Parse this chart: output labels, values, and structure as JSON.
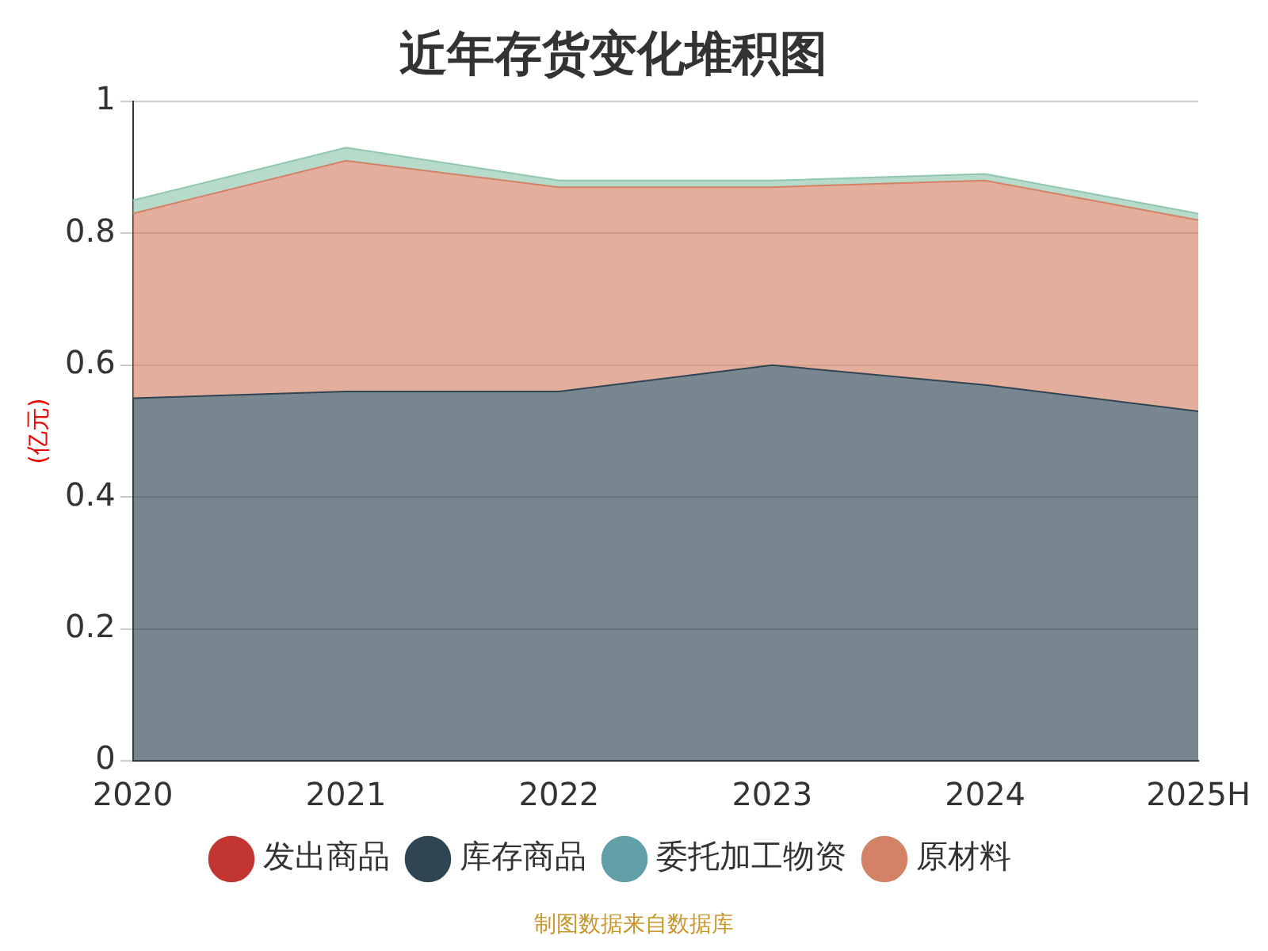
{
  "chart_data": {
    "type": "area",
    "title": "近年存货变化堆积图",
    "ylabel": "(亿元)",
    "categories": [
      "2020",
      "2021",
      "2022",
      "2023",
      "2024",
      "2025H"
    ],
    "series": [
      {
        "name": "发出商品",
        "color": "#c23531",
        "values": [
          null,
          null,
          null,
          null,
          null,
          null
        ]
      },
      {
        "name": "库存商品",
        "color": "#2f4554",
        "values": [
          0.55,
          0.56,
          0.56,
          0.6,
          0.57,
          0.53
        ]
      },
      {
        "name": "委托加工物资",
        "color": "#61a0a8",
        "values": [
          null,
          null,
          null,
          null,
          null,
          null
        ]
      },
      {
        "name": "原材料",
        "color": "#d48265",
        "values": [
          0.28,
          0.35,
          0.31,
          0.27,
          0.31,
          0.29
        ]
      },
      {
        "color": "#91c7ae",
        "values": [
          0.02,
          0.02,
          0.01,
          0.01,
          0.01,
          0.01
        ]
      }
    ],
    "stacked": true,
    "ylim": [
      0,
      1
    ],
    "yticks": [
      0,
      0.2,
      0.4,
      0.6,
      0.8,
      1
    ],
    "grid": "y",
    "legend": "bottom",
    "marker": "none",
    "annotations": [
      "制图数据来自数据库"
    ]
  }
}
